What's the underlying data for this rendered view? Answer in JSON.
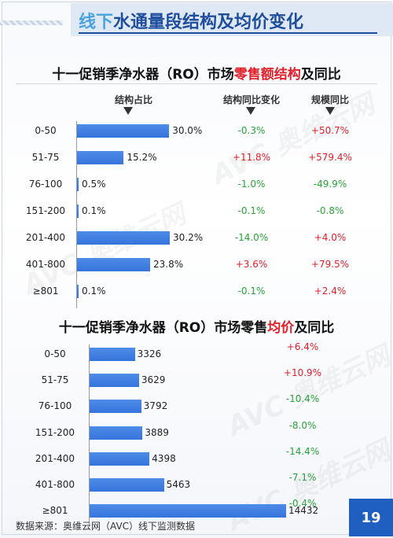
{
  "page": {
    "title_accent": "线下",
    "title_rest": "水通量段结构及均价变化",
    "source": "数据来源：奥维云网（AVC）线下监测数据",
    "page_number": "19",
    "watermark": "AVC 奥维云网"
  },
  "colors": {
    "bar": "#3a78dd",
    "positive": "#e0202a",
    "negative": "#2aa33a",
    "title": "#1f4e9c"
  },
  "chart_data": [
    {
      "type": "bar",
      "title_pre": "十一促销季净水器（RO）市场",
      "title_hl": "零售额结构",
      "title_post": "及同比",
      "headers": {
        "share": "结构占比",
        "share_change": "结构同比变化",
        "scale_change": "规模同比"
      },
      "categories": [
        "0-50",
        "51-75",
        "76-100",
        "151-200",
        "201-400",
        "401-800",
        "≥801"
      ],
      "values": [
        30.0,
        15.2,
        0.5,
        0.1,
        30.2,
        23.8,
        0.1
      ],
      "value_labels": [
        "30.0%",
        "15.2%",
        "0.5%",
        "0.1%",
        "30.2%",
        "23.8%",
        "0.1%"
      ],
      "share_change": [
        "-0.3%",
        "+11.8%",
        "-1.0%",
        "-0.1%",
        "-14.0%",
        "+3.6%",
        "-0.1%"
      ],
      "scale_change": [
        "+50.7%",
        "+579.4%",
        "-49.9%",
        "-0.8%",
        "+4.0%",
        "+79.5%",
        "+2.4%"
      ]
    },
    {
      "type": "bar",
      "title_pre": "十一促销季净水器（RO）市场零售",
      "title_hl": "均价",
      "title_post": "及同比",
      "categories": [
        "0-50",
        "51-75",
        "76-100",
        "151-200",
        "201-400",
        "401-800",
        "≥801"
      ],
      "values": [
        3326,
        3629,
        3792,
        3889,
        4398,
        5463,
        14432
      ],
      "value_labels": [
        "3326",
        "3629",
        "3792",
        "3889",
        "4398",
        "5463",
        "14432"
      ],
      "yoy": [
        "+6.4%",
        "+10.9%",
        "-10.4%",
        "-8.0%",
        "-14.4%",
        "-7.1%",
        "-0.4%"
      ]
    }
  ]
}
